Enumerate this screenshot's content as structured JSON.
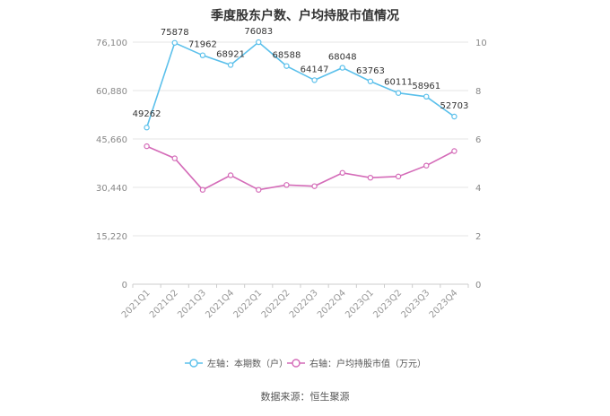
{
  "source": "数据来源：恒生聚源",
  "chart_data": {
    "type": "line",
    "title": "季度股东户数、户均持股市值情况",
    "categories": [
      "2021Q1",
      "2021Q2",
      "2021Q3",
      "2021Q4",
      "2022Q1",
      "2022Q2",
      "2022Q3",
      "2022Q4",
      "2023Q1",
      "2023Q2",
      "2023Q3",
      "2023Q4"
    ],
    "y_left": {
      "ticks": [
        "0",
        "15,220",
        "30,440",
        "45,660",
        "60,880",
        "76,100"
      ],
      "range": [
        0,
        76100
      ]
    },
    "y_right": {
      "ticks": [
        "0",
        "2",
        "4",
        "6",
        "8",
        "10"
      ],
      "range": [
        0,
        10
      ]
    },
    "series": [
      {
        "name": "左轴：本期数（户）",
        "axis": "left",
        "color": "#5bc0eb",
        "values": [
          49262,
          75878,
          71962,
          68921,
          76083,
          68588,
          64147,
          68048,
          63763,
          60111,
          58961,
          52703
        ],
        "labels": [
          "49262",
          "75878",
          "71962",
          "68921",
          "76083",
          "68588",
          "64147",
          "68048",
          "63763",
          "60111",
          "58961",
          "52703"
        ]
      },
      {
        "name": "右轴：户均持股市值（万元）",
        "axis": "right",
        "color": "#d46bb8",
        "values": [
          5.7,
          5.2,
          3.9,
          4.5,
          3.9,
          4.1,
          4.05,
          4.6,
          4.4,
          4.45,
          4.9,
          5.5
        ]
      }
    ],
    "grid": true,
    "legend": "bottom"
  }
}
